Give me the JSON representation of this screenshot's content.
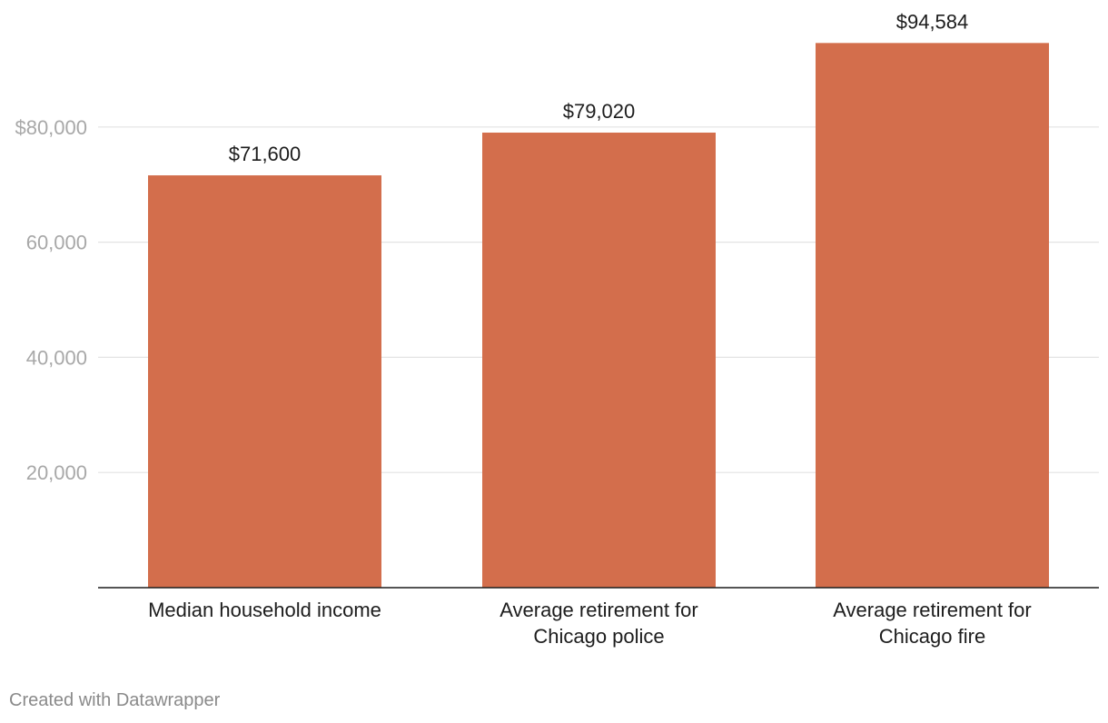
{
  "chart_data": {
    "type": "bar",
    "categories": [
      [
        "Median household income"
      ],
      [
        "Average retirement for",
        "Chicago police"
      ],
      [
        "Average retirement for",
        "Chicago fire"
      ]
    ],
    "values": [
      71600,
      79020,
      94584
    ],
    "value_labels": [
      "$71,600",
      "$79,020",
      "$94,584"
    ],
    "y_ticks": [
      20000,
      40000,
      60000,
      80000
    ],
    "y_tick_labels": [
      "20,000",
      "40,000",
      "60,000",
      "$80,000"
    ],
    "ylim": [
      0,
      100000
    ],
    "title": "",
    "xlabel": "",
    "ylabel": "",
    "grid": true,
    "colors": {
      "bar": "#d36e4c",
      "grid": "#e3e3e3",
      "axis": "#1d1d1d"
    }
  },
  "footer": {
    "credit": "Created with Datawrapper"
  }
}
